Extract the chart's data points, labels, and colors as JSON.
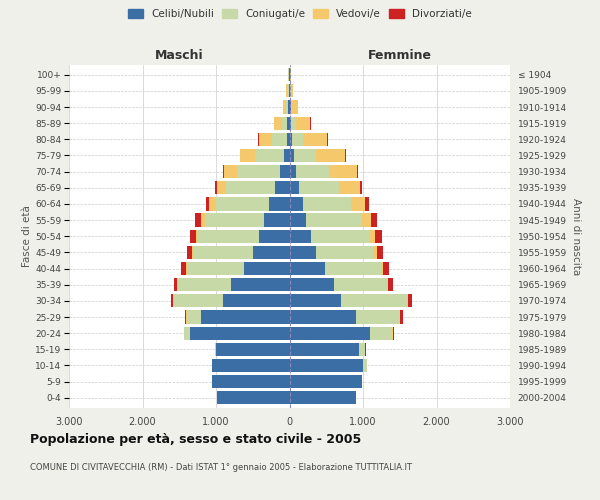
{
  "age_groups": [
    "0-4",
    "5-9",
    "10-14",
    "15-19",
    "20-24",
    "25-29",
    "30-34",
    "35-39",
    "40-44",
    "45-49",
    "50-54",
    "55-59",
    "60-64",
    "65-69",
    "70-74",
    "75-79",
    "80-84",
    "85-89",
    "90-94",
    "95-99",
    "100+"
  ],
  "birth_years": [
    "2000-2004",
    "1995-1999",
    "1990-1994",
    "1985-1989",
    "1980-1984",
    "1975-1979",
    "1970-1974",
    "1965-1969",
    "1960-1964",
    "1955-1959",
    "1950-1954",
    "1945-1949",
    "1940-1944",
    "1935-1939",
    "1930-1934",
    "1925-1929",
    "1920-1924",
    "1915-1919",
    "1910-1914",
    "1905-1909",
    "≤ 1904"
  ],
  "colors": {
    "celibi": "#3a6ea5",
    "coniugati": "#c8d9a8",
    "vedovi": "#f5c96b",
    "divorziati": "#cc2222"
  },
  "maschi": {
    "celibi": [
      980,
      1050,
      1050,
      1000,
      1350,
      1200,
      900,
      800,
      620,
      500,
      420,
      350,
      280,
      200,
      130,
      70,
      40,
      30,
      15,
      10,
      5
    ],
    "coniugati": [
      5,
      5,
      10,
      15,
      80,
      200,
      680,
      720,
      780,
      810,
      820,
      800,
      720,
      660,
      580,
      400,
      200,
      80,
      30,
      15,
      10
    ],
    "vedovi": [
      0,
      0,
      0,
      0,
      5,
      5,
      5,
      5,
      10,
      20,
      30,
      50,
      90,
      130,
      180,
      200,
      180,
      100,
      50,
      20,
      10
    ],
    "divorziati": [
      0,
      0,
      0,
      0,
      5,
      15,
      30,
      50,
      60,
      70,
      80,
      80,
      50,
      30,
      10,
      10,
      5,
      5,
      0,
      0,
      0
    ]
  },
  "femmine": {
    "celibi": [
      900,
      980,
      1000,
      950,
      1100,
      900,
      700,
      600,
      480,
      360,
      290,
      230,
      180,
      130,
      90,
      55,
      35,
      25,
      15,
      10,
      5
    ],
    "coniugati": [
      5,
      10,
      50,
      80,
      300,
      600,
      900,
      720,
      760,
      780,
      800,
      750,
      650,
      550,
      450,
      300,
      150,
      60,
      20,
      10,
      5
    ],
    "vedovi": [
      0,
      0,
      0,
      0,
      5,
      10,
      10,
      15,
      30,
      50,
      80,
      130,
      200,
      280,
      380,
      400,
      330,
      200,
      80,
      30,
      15
    ],
    "divorziati": [
      0,
      0,
      0,
      5,
      10,
      30,
      50,
      70,
      80,
      80,
      90,
      80,
      50,
      20,
      15,
      10,
      5,
      5,
      0,
      0,
      0
    ]
  },
  "title": "Popolazione per età, sesso e stato civile - 2005",
  "subtitle": "COMUNE DI CIVITAVECCHIA (RM) - Dati ISTAT 1° gennaio 2005 - Elaborazione TUTTITALIA.IT",
  "xlabel_left": "Maschi",
  "xlabel_right": "Femmine",
  "ylabel_left": "Fasce di età",
  "ylabel_right": "Anni di nascita",
  "xlim": 3000,
  "bg_color": "#f0f0eb",
  "plot_bg": "#ffffff",
  "grid_color": "#cccccc"
}
